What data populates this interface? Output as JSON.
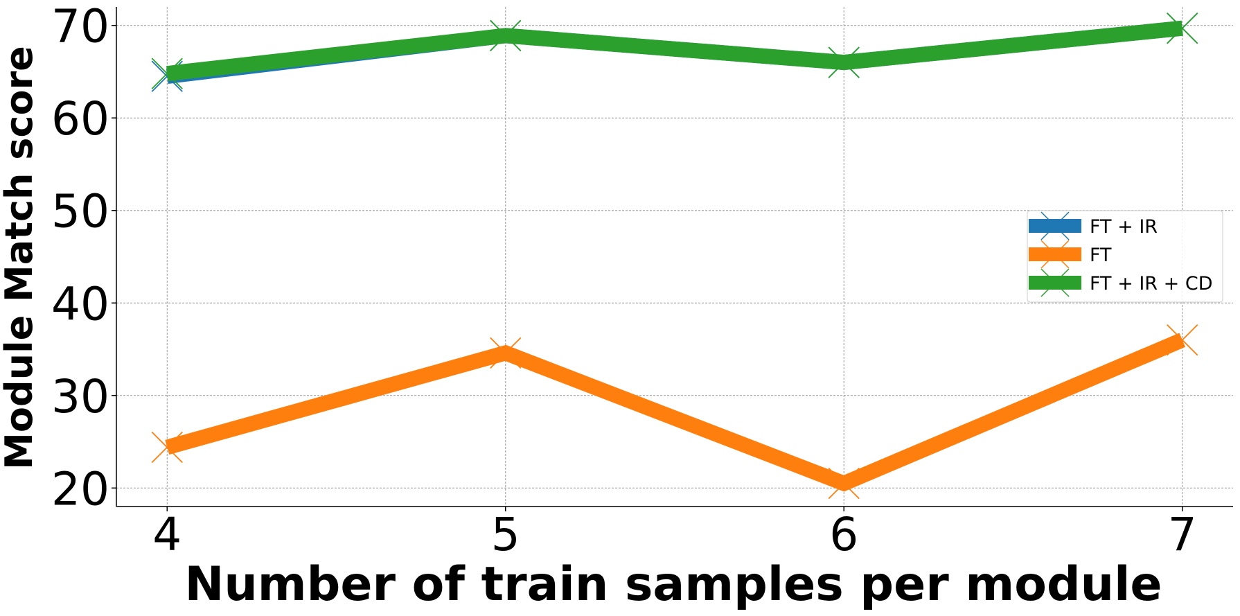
{
  "chart_data": {
    "type": "line",
    "x": [
      4,
      5,
      6,
      7
    ],
    "xlabel": "Number of train samples per module",
    "ylabel": "Module Match score",
    "xticks": [
      4,
      5,
      6,
      7
    ],
    "yticks": [
      20,
      30,
      40,
      50,
      60,
      70
    ],
    "xlim": [
      3.85,
      7.15
    ],
    "ylim": [
      18,
      72
    ],
    "grid": true,
    "legend_position": "right",
    "marker": "x",
    "series": [
      {
        "name": "FT + IR",
        "color": "#1f77b4",
        "values": [
          64.5,
          68.9,
          66.0,
          69.7
        ]
      },
      {
        "name": "FT",
        "color": "#ff7f0e",
        "values": [
          24.4,
          34.6,
          20.5,
          36.0
        ]
      },
      {
        "name": "FT + IR + CD",
        "color": "#2ca02c",
        "values": [
          64.8,
          68.9,
          66.0,
          69.7
        ]
      }
    ]
  }
}
